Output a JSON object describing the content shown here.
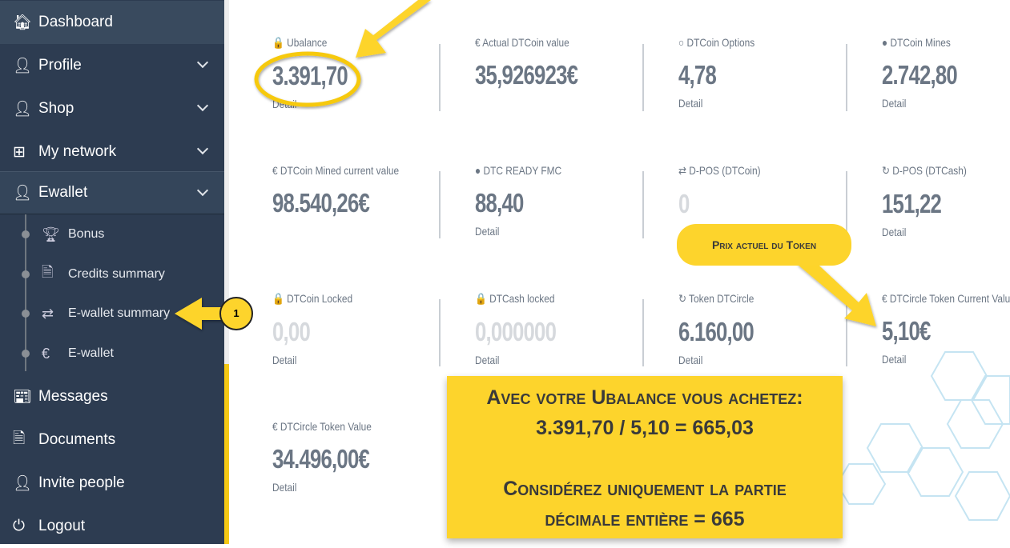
{
  "sidebar": {
    "items": [
      {
        "label": "Dashboard",
        "icon": "home-icon"
      },
      {
        "label": "Profile",
        "icon": "user-icon"
      },
      {
        "label": "Shop",
        "icon": "user-icon"
      },
      {
        "label": "My network",
        "icon": "sitemap-icon"
      },
      {
        "label": "Ewallet",
        "icon": "user-icon"
      },
      {
        "label": "Messages",
        "icon": "newspaper-icon"
      },
      {
        "label": "Documents",
        "icon": "file-icon"
      },
      {
        "label": "Invite people",
        "icon": "user-plus-icon"
      },
      {
        "label": "Logout",
        "icon": "power-icon"
      }
    ],
    "ewallet_sub": [
      {
        "label": "Bonus",
        "icon": "trophy-icon"
      },
      {
        "label": "Credits summary",
        "icon": "document-icon"
      },
      {
        "label": "E-wallet summary",
        "icon": "exchange-icon"
      },
      {
        "label": "E-wallet",
        "icon": "euro-icon"
      }
    ]
  },
  "cards": [
    {
      "label": "🔒 Ubalance",
      "value": "3.391,70",
      "detail": "Detail"
    },
    {
      "label": "€ Actual DTCoin value",
      "value": "35,926923€",
      "detail": ""
    },
    {
      "label": "○ DTCoin Options",
      "value": "4,78",
      "detail": "Detail"
    },
    {
      "label": "● DTCoin Mines",
      "value": "2.742,80",
      "detail": "Detail"
    },
    {
      "label": "€ DTCoin Mined current value",
      "value": "98.540,26€",
      "detail": ""
    },
    {
      "label": "● DTC READY FMC",
      "value": "88,40",
      "detail": "Detail"
    },
    {
      "label": "⇄ D-POS (DTCoin)",
      "value": "0",
      "detail": ""
    },
    {
      "label": "↻ D-POS (DTCash)",
      "value": "151,22",
      "detail": "Detail"
    },
    {
      "label": "🔒 DTCoin Locked",
      "value": "0,00",
      "detail": "Detail"
    },
    {
      "label": "🔒 DTCash locked",
      "value": "0,000000",
      "detail": "Detail"
    },
    {
      "label": "↻ Token DTCircle",
      "value": "6.160,00",
      "detail": "Detail"
    },
    {
      "label": "€ DTCircle Token Current Value",
      "value": "5,10€",
      "detail": "Detail"
    },
    {
      "label": "€ DTCircle Token Value",
      "value": "34.496,00€",
      "detail": "Detail"
    }
  ],
  "annotations": {
    "step": "1",
    "token_price": "Prix actuel du Token",
    "line1": "Avec votre Ubalance vous achetez:",
    "line2": "3.391,70 / 5,10 = 665,03",
    "line3": "Considérez uniquement la partie",
    "line4": "décimale entière = 665",
    "color": "#fdd42c"
  }
}
